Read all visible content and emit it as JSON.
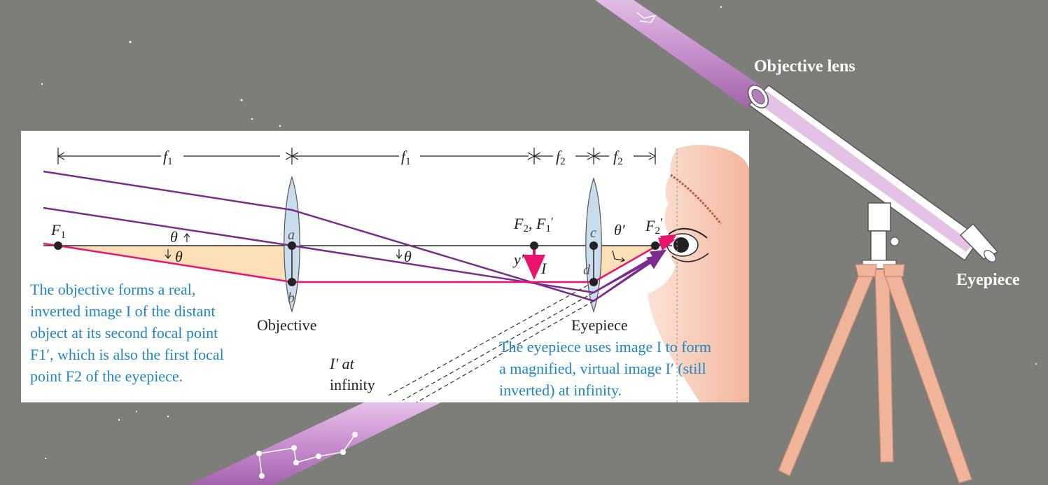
{
  "background_labels": {
    "objective_lens": "Objective lens",
    "eyepiece": "Eyepiece"
  },
  "dimensions": {
    "f1_left": "f",
    "f1_left_sub": "1",
    "f1_right": "f",
    "f1_right_sub": "1",
    "f2_left": "f",
    "f2_left_sub": "2",
    "f2_right": "f",
    "f2_right_sub": "2"
  },
  "points": {
    "F1": "F",
    "F1_sub": "1",
    "a": "a",
    "b": "b",
    "c": "c",
    "d": "d",
    "F2F1p_main": "F",
    "F2F1p_sub1": "2",
    "F2F1p_mid": ", F",
    "F2F1p_sub2": "1",
    "F2F1p_prime": "′",
    "F2p": "F",
    "F2p_sub": "2",
    "F2p_prime": "′"
  },
  "angles": {
    "theta": "θ",
    "theta_prime": "θ′"
  },
  "image_labels": {
    "y_prime": "y′",
    "I": "I",
    "I_prime_at": "I′ at",
    "infinity": "infinity"
  },
  "lens_labels": {
    "objective": "Objective",
    "eyepiece": "Eyepiece"
  },
  "captions": {
    "objective_lines": [
      "The objective forms a real,",
      "inverted image I of the distant",
      "object at its second focal point",
      "F1′, which is also the first focal",
      "point F2 of the eyepiece."
    ],
    "eyepiece_lines": [
      "The eyepiece uses image I to form",
      "a magnified, virtual image I′ (still",
      "inverted) at infinity."
    ]
  },
  "colors": {
    "background": "#7d7d79",
    "panel": "#ffffff",
    "ray_purple": "#7b2b8c",
    "ray_pink": "#e8146e",
    "caption_blue": "#1f86c4",
    "lens_fill": "#c8dcec",
    "shade": "#fde0b8",
    "tube": "#c98fd0",
    "tripod": "#f0b49a"
  }
}
